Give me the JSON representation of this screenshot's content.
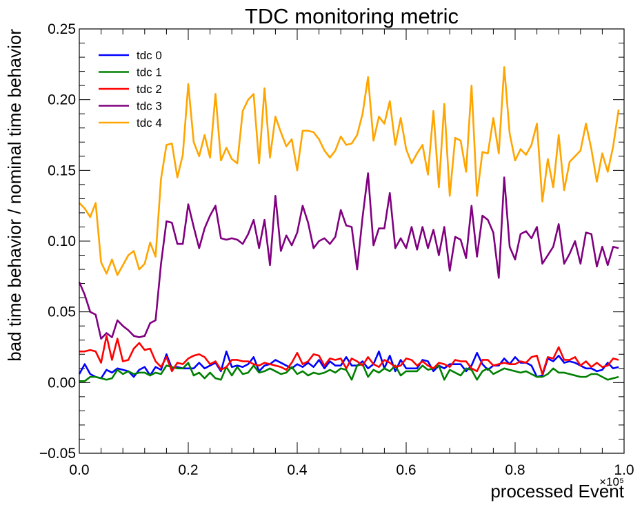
{
  "chart_data": {
    "type": "line",
    "title": "TDC monitoring metric",
    "xlabel": "processed Event",
    "ylabel": "bad time behavior / nominal time behavior",
    "x_exponent_label": "×10⁵",
    "xlim": [
      0.0,
      1.0
    ],
    "ylim": [
      -0.05,
      0.25
    ],
    "xticks": [
      0.0,
      0.2,
      0.4,
      0.6,
      0.8,
      1.0
    ],
    "xtick_labels": [
      "0.0",
      "0.2",
      "0.4",
      "0.6",
      "0.8",
      "1.0"
    ],
    "yticks": [
      -0.05,
      0.0,
      0.05,
      0.1,
      0.15,
      0.2,
      0.25
    ],
    "ytick_labels": [
      "−0.05",
      "0.00",
      "0.05",
      "0.10",
      "0.15",
      "0.20",
      "0.25"
    ],
    "legend_position": "top-left",
    "x": [
      0.0,
      0.01,
      0.02,
      0.03,
      0.04,
      0.05,
      0.06,
      0.07,
      0.08,
      0.09,
      0.1,
      0.11,
      0.12,
      0.13,
      0.14,
      0.15,
      0.16,
      0.17,
      0.18,
      0.19,
      0.2,
      0.21,
      0.22,
      0.23,
      0.24,
      0.25,
      0.26,
      0.27,
      0.28,
      0.29,
      0.3,
      0.31,
      0.32,
      0.33,
      0.34,
      0.35,
      0.36,
      0.37,
      0.38,
      0.39,
      0.4,
      0.41,
      0.42,
      0.43,
      0.44,
      0.45,
      0.46,
      0.47,
      0.48,
      0.49,
      0.5,
      0.51,
      0.52,
      0.53,
      0.54,
      0.55,
      0.56,
      0.57,
      0.58,
      0.59,
      0.6,
      0.61,
      0.62,
      0.63,
      0.64,
      0.65,
      0.66,
      0.67,
      0.68,
      0.69,
      0.7,
      0.71,
      0.72,
      0.73,
      0.74,
      0.75,
      0.76,
      0.77,
      0.78,
      0.79,
      0.8,
      0.81,
      0.82,
      0.83,
      0.84,
      0.85,
      0.86,
      0.87,
      0.88,
      0.89,
      0.9,
      0.91,
      0.92,
      0.93,
      0.94,
      0.95,
      0.96,
      0.97,
      0.98,
      0.99
    ],
    "series": [
      {
        "name": "tdc 0",
        "color": "#0000ff",
        "values": [
          0.006,
          0.013,
          0.006,
          0.004,
          0.003,
          0.009,
          0.007,
          0.01,
          0.009,
          0.008,
          0.004,
          0.009,
          0.011,
          0.005,
          0.011,
          0.009,
          0.02,
          0.01,
          0.011,
          0.01,
          0.01,
          0.01,
          0.014,
          0.01,
          0.012,
          0.014,
          0.008,
          0.022,
          0.011,
          0.012,
          0.011,
          0.013,
          0.018,
          0.008,
          0.012,
          0.013,
          0.016,
          0.014,
          0.012,
          0.01,
          0.013,
          0.011,
          0.014,
          0.011,
          0.016,
          0.01,
          0.015,
          0.012,
          0.012,
          0.018,
          0.012,
          0.012,
          0.015,
          0.01,
          0.013,
          0.022,
          0.01,
          0.019,
          0.008,
          0.016,
          0.01,
          0.01,
          0.01,
          0.016,
          0.015,
          0.008,
          0.012,
          0.01,
          0.013,
          0.013,
          0.013,
          0.008,
          0.012,
          0.021,
          0.013,
          0.009,
          0.012,
          0.012,
          0.017,
          0.013,
          0.018,
          0.014,
          0.014,
          0.012,
          0.004,
          0.005,
          0.017,
          0.015,
          0.019,
          0.014,
          0.015,
          0.014,
          0.012,
          0.01,
          0.01,
          0.008,
          0.009,
          0.014,
          0.01,
          0.011
        ]
      },
      {
        "name": "tdc 1",
        "color": "#008000",
        "values": [
          0.001,
          0.001,
          0.004,
          0.004,
          0.003,
          0.002,
          0.003,
          0.009,
          0.006,
          0.008,
          0.006,
          0.007,
          0.007,
          0.005,
          0.007,
          0.006,
          0.012,
          0.011,
          0.01,
          0.01,
          0.014,
          0.005,
          0.007,
          0.003,
          0.007,
          0.003,
          0.002,
          0.011,
          0.005,
          0.011,
          0.006,
          0.007,
          0.012,
          0.007,
          0.008,
          0.01,
          0.008,
          0.006,
          0.007,
          0.011,
          0.006,
          0.008,
          0.005,
          0.007,
          0.006,
          0.007,
          0.009,
          0.007,
          0.01,
          0.009,
          0.002,
          0.012,
          0.013,
          0.004,
          0.009,
          0.007,
          0.01,
          0.008,
          0.012,
          0.005,
          0.008,
          0.008,
          0.008,
          0.012,
          0.009,
          0.01,
          0.012,
          0.002,
          0.009,
          0.007,
          0.005,
          0.01,
          0.009,
          0.002,
          0.008,
          0.01,
          0.006,
          0.008,
          0.01,
          0.009,
          0.008,
          0.007,
          0.008,
          0.006,
          0.004,
          0.004,
          0.006,
          0.01,
          0.007,
          0.007,
          0.006,
          0.005,
          0.004,
          0.004,
          0.006,
          0.006,
          0.004,
          0.002,
          0.003,
          0.004
        ]
      },
      {
        "name": "tdc 2",
        "color": "#ff0000",
        "values": [
          0.022,
          0.022,
          0.023,
          0.022,
          0.014,
          0.033,
          0.016,
          0.031,
          0.015,
          0.016,
          0.024,
          0.028,
          0.023,
          0.024,
          0.015,
          0.011,
          0.018,
          0.008,
          0.014,
          0.013,
          0.017,
          0.019,
          0.02,
          0.018,
          0.013,
          0.015,
          0.009,
          0.011,
          0.016,
          0.016,
          0.015,
          0.015,
          0.013,
          0.012,
          0.014,
          0.013,
          0.012,
          0.011,
          0.009,
          0.014,
          0.021,
          0.013,
          0.015,
          0.02,
          0.019,
          0.012,
          0.017,
          0.016,
          0.017,
          0.01,
          0.017,
          0.015,
          0.012,
          0.018,
          0.013,
          0.011,
          0.016,
          0.014,
          0.011,
          0.012,
          0.017,
          0.016,
          0.012,
          0.015,
          0.012,
          0.01,
          0.014,
          0.013,
          0.011,
          0.016,
          0.015,
          0.015,
          0.01,
          0.008,
          0.016,
          0.016,
          0.012,
          0.013,
          0.014,
          0.013,
          0.013,
          0.015,
          0.014,
          0.018,
          0.019,
          0.006,
          0.018,
          0.017,
          0.025,
          0.016,
          0.016,
          0.018,
          0.012,
          0.015,
          0.011,
          0.014,
          0.011,
          0.012,
          0.017,
          0.016
        ]
      },
      {
        "name": "tdc 3",
        "color": "#800080",
        "values": [
          0.071,
          0.062,
          0.05,
          0.048,
          0.031,
          0.035,
          0.032,
          0.044,
          0.04,
          0.037,
          0.033,
          0.032,
          0.033,
          0.042,
          0.044,
          0.084,
          0.114,
          0.113,
          0.098,
          0.098,
          0.126,
          0.11,
          0.095,
          0.109,
          0.118,
          0.125,
          0.102,
          0.101,
          0.102,
          0.101,
          0.098,
          0.105,
          0.115,
          0.095,
          0.115,
          0.083,
          0.132,
          0.093,
          0.104,
          0.097,
          0.106,
          0.125,
          0.113,
          0.095,
          0.1,
          0.102,
          0.098,
          0.103,
          0.122,
          0.111,
          0.11,
          0.08,
          0.117,
          0.148,
          0.097,
          0.109,
          0.109,
          0.134,
          0.095,
          0.102,
          0.095,
          0.11,
          0.094,
          0.11,
          0.095,
          0.108,
          0.09,
          0.11,
          0.079,
          0.103,
          0.101,
          0.088,
          0.125,
          0.089,
          0.118,
          0.115,
          0.106,
          0.074,
          0.145,
          0.096,
          0.087,
          0.105,
          0.107,
          0.102,
          0.11,
          0.084,
          0.09,
          0.096,
          0.112,
          0.084,
          0.091,
          0.1,
          0.084,
          0.106,
          0.105,
          0.082,
          0.096,
          0.083,
          0.096,
          0.095
        ]
      },
      {
        "name": "tdc 4",
        "color": "#ffa500",
        "values": [
          0.127,
          0.123,
          0.117,
          0.127,
          0.085,
          0.077,
          0.087,
          0.076,
          0.083,
          0.09,
          0.093,
          0.08,
          0.084,
          0.099,
          0.089,
          0.144,
          0.168,
          0.169,
          0.145,
          0.161,
          0.211,
          0.17,
          0.16,
          0.175,
          0.159,
          0.204,
          0.157,
          0.166,
          0.158,
          0.155,
          0.192,
          0.2,
          0.204,
          0.155,
          0.208,
          0.159,
          0.188,
          0.177,
          0.167,
          0.172,
          0.15,
          0.178,
          0.178,
          0.177,
          0.172,
          0.164,
          0.159,
          0.164,
          0.174,
          0.168,
          0.169,
          0.175,
          0.19,
          0.216,
          0.171,
          0.188,
          0.183,
          0.199,
          0.168,
          0.187,
          0.165,
          0.155,
          0.162,
          0.168,
          0.147,
          0.192,
          0.138,
          0.197,
          0.132,
          0.173,
          0.171,
          0.149,
          0.21,
          0.132,
          0.163,
          0.162,
          0.187,
          0.162,
          0.223,
          0.176,
          0.157,
          0.165,
          0.161,
          0.168,
          0.183,
          0.128,
          0.158,
          0.138,
          0.175,
          0.136,
          0.156,
          0.16,
          0.164,
          0.183,
          0.165,
          0.142,
          0.162,
          0.149,
          0.167,
          0.193
        ]
      }
    ]
  }
}
